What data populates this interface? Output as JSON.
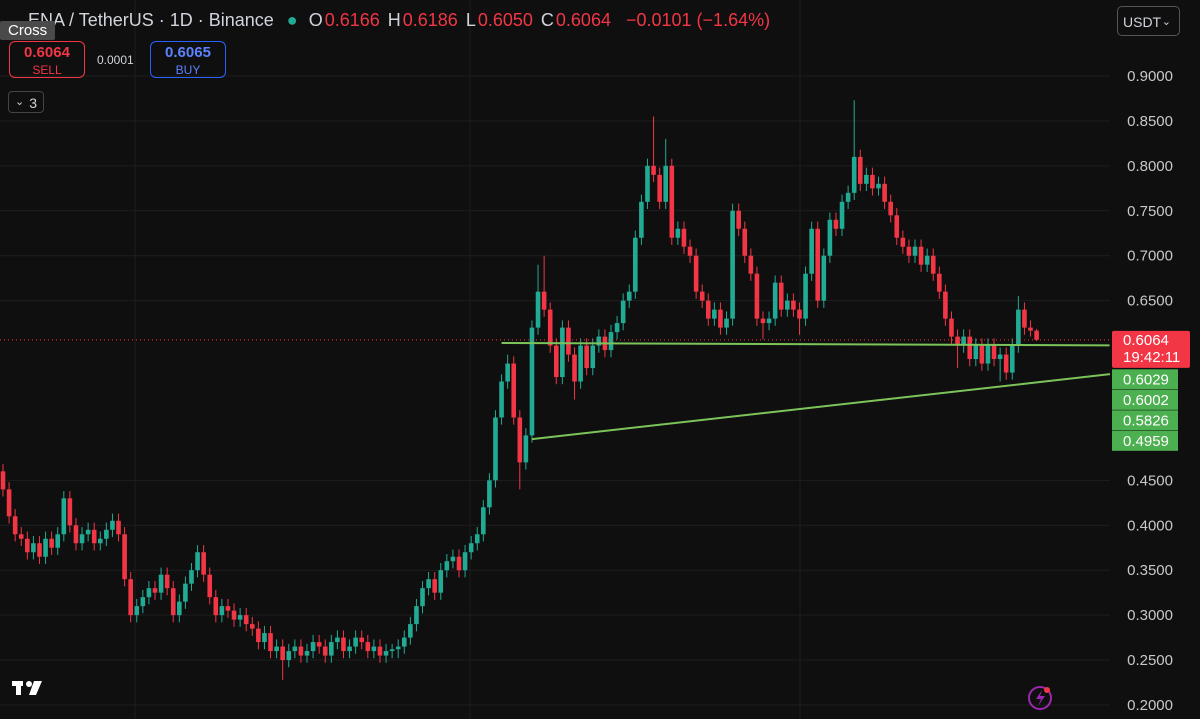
{
  "chart_data": {
    "type": "candlestick",
    "title": "ENA / TetherUS · 1D · Binance",
    "ohlc_header": [
      {
        "key": "O",
        "value": "0.6166"
      },
      {
        "key": "H",
        "value": "0.6186"
      },
      {
        "key": "L",
        "value": "0.6050"
      },
      {
        "key": "C",
        "value": "0.6064"
      }
    ],
    "change": "−0.0101 (−1.64%)",
    "up_color": "#22ab94",
    "down_color": "#f23645",
    "line_color": "#7cc45a",
    "ylim": [
      0.1844,
      0.9846
    ],
    "yticks": [
      {
        "value": 0.2,
        "label": "0.2000"
      },
      {
        "value": 0.25,
        "label": "0.2500"
      },
      {
        "value": 0.3,
        "label": "0.3000"
      },
      {
        "value": 0.35,
        "label": "0.3500"
      },
      {
        "value": 0.4,
        "label": "0.4000"
      },
      {
        "value": 0.45,
        "label": "0.4500"
      },
      {
        "value": 0.65,
        "label": "0.6500"
      },
      {
        "value": 0.7,
        "label": "0.7000"
      },
      {
        "value": 0.75,
        "label": "0.7500"
      },
      {
        "value": 0.8,
        "label": "0.8000"
      },
      {
        "value": 0.85,
        "label": "0.8500"
      },
      {
        "value": 0.9,
        "label": "0.9000"
      }
    ],
    "last_price": {
      "value": 0.6064,
      "label": "0.6064",
      "countdown": "19:42:11"
    },
    "line_labels": [
      {
        "value": 0.6029,
        "label": "0.6029"
      },
      {
        "value": 0.6002,
        "label": "0.6002"
      },
      {
        "value": 0.5826,
        "label": "0.5826"
      },
      {
        "value": 0.4959,
        "label": "0.4959"
      }
    ],
    "trend_lines": [
      {
        "x": [
          82,
          182
        ],
        "y": [
          0.6029,
          0.6002
        ]
      },
      {
        "x": [
          87,
          201
        ],
        "y": [
          0.4959,
          0.5826
        ]
      }
    ],
    "candles": [
      [
        0.46,
        0.468,
        0.432,
        0.44
      ],
      [
        0.44,
        0.448,
        0.402,
        0.41
      ],
      [
        0.41,
        0.418,
        0.382,
        0.39
      ],
      [
        0.39,
        0.398,
        0.377,
        0.385
      ],
      [
        0.385,
        0.393,
        0.362,
        0.37
      ],
      [
        0.37,
        0.388,
        0.362,
        0.38
      ],
      [
        0.38,
        0.388,
        0.357,
        0.365
      ],
      [
        0.365,
        0.393,
        0.357,
        0.385
      ],
      [
        0.385,
        0.393,
        0.367,
        0.375
      ],
      [
        0.375,
        0.398,
        0.367,
        0.39
      ],
      [
        0.39,
        0.438,
        0.382,
        0.43
      ],
      [
        0.43,
        0.438,
        0.392,
        0.4
      ],
      [
        0.4,
        0.408,
        0.372,
        0.38
      ],
      [
        0.38,
        0.398,
        0.372,
        0.39
      ],
      [
        0.39,
        0.403,
        0.382,
        0.395
      ],
      [
        0.395,
        0.403,
        0.372,
        0.38
      ],
      [
        0.38,
        0.393,
        0.372,
        0.385
      ],
      [
        0.385,
        0.403,
        0.377,
        0.395
      ],
      [
        0.395,
        0.413,
        0.387,
        0.405
      ],
      [
        0.405,
        0.413,
        0.382,
        0.39
      ],
      [
        0.39,
        0.398,
        0.332,
        0.34
      ],
      [
        0.34,
        0.348,
        0.292,
        0.3
      ],
      [
        0.3,
        0.318,
        0.292,
        0.31
      ],
      [
        0.31,
        0.328,
        0.302,
        0.32
      ],
      [
        0.32,
        0.338,
        0.312,
        0.33
      ],
      [
        0.33,
        0.338,
        0.317,
        0.325
      ],
      [
        0.325,
        0.353,
        0.317,
        0.345
      ],
      [
        0.345,
        0.353,
        0.322,
        0.33
      ],
      [
        0.33,
        0.338,
        0.292,
        0.3
      ],
      [
        0.3,
        0.323,
        0.292,
        0.315
      ],
      [
        0.315,
        0.343,
        0.307,
        0.335
      ],
      [
        0.335,
        0.358,
        0.327,
        0.35
      ],
      [
        0.35,
        0.378,
        0.342,
        0.37
      ],
      [
        0.37,
        0.378,
        0.337,
        0.345
      ],
      [
        0.345,
        0.353,
        0.312,
        0.32
      ],
      [
        0.32,
        0.328,
        0.292,
        0.3
      ],
      [
        0.3,
        0.318,
        0.292,
        0.31
      ],
      [
        0.31,
        0.318,
        0.297,
        0.305
      ],
      [
        0.305,
        0.313,
        0.287,
        0.295
      ],
      [
        0.295,
        0.308,
        0.287,
        0.3
      ],
      [
        0.3,
        0.308,
        0.282,
        0.29
      ],
      [
        0.29,
        0.298,
        0.277,
        0.285
      ],
      [
        0.285,
        0.293,
        0.262,
        0.27
      ],
      [
        0.27,
        0.288,
        0.262,
        0.28
      ],
      [
        0.28,
        0.288,
        0.252,
        0.26
      ],
      [
        0.26,
        0.273,
        0.252,
        0.265
      ],
      [
        0.265,
        0.273,
        0.228,
        0.25
      ],
      [
        0.25,
        0.268,
        0.242,
        0.26
      ],
      [
        0.26,
        0.273,
        0.252,
        0.265
      ],
      [
        0.265,
        0.273,
        0.247,
        0.255
      ],
      [
        0.255,
        0.268,
        0.247,
        0.26
      ],
      [
        0.26,
        0.278,
        0.252,
        0.27
      ],
      [
        0.27,
        0.278,
        0.257,
        0.265
      ],
      [
        0.265,
        0.273,
        0.247,
        0.255
      ],
      [
        0.255,
        0.278,
        0.247,
        0.27
      ],
      [
        0.27,
        0.283,
        0.262,
        0.275
      ],
      [
        0.275,
        0.283,
        0.252,
        0.26
      ],
      [
        0.26,
        0.273,
        0.252,
        0.265
      ],
      [
        0.265,
        0.283,
        0.257,
        0.275
      ],
      [
        0.275,
        0.283,
        0.262,
        0.27
      ],
      [
        0.27,
        0.278,
        0.252,
        0.26
      ],
      [
        0.26,
        0.273,
        0.252,
        0.265
      ],
      [
        0.265,
        0.273,
        0.247,
        0.255
      ],
      [
        0.255,
        0.268,
        0.247,
        0.26
      ],
      [
        0.26,
        0.268,
        0.252,
        0.262
      ],
      [
        0.262,
        0.273,
        0.252,
        0.265
      ],
      [
        0.265,
        0.283,
        0.257,
        0.275
      ],
      [
        0.275,
        0.298,
        0.267,
        0.29
      ],
      [
        0.29,
        0.318,
        0.282,
        0.31
      ],
      [
        0.31,
        0.338,
        0.302,
        0.33
      ],
      [
        0.33,
        0.348,
        0.322,
        0.34
      ],
      [
        0.34,
        0.348,
        0.317,
        0.325
      ],
      [
        0.325,
        0.358,
        0.317,
        0.35
      ],
      [
        0.35,
        0.368,
        0.342,
        0.36
      ],
      [
        0.36,
        0.373,
        0.352,
        0.365
      ],
      [
        0.365,
        0.373,
        0.342,
        0.35
      ],
      [
        0.35,
        0.378,
        0.342,
        0.37
      ],
      [
        0.37,
        0.388,
        0.362,
        0.38
      ],
      [
        0.38,
        0.398,
        0.372,
        0.39
      ],
      [
        0.39,
        0.428,
        0.382,
        0.42
      ],
      [
        0.42,
        0.458,
        0.412,
        0.45
      ],
      [
        0.45,
        0.528,
        0.442,
        0.52
      ],
      [
        0.52,
        0.568,
        0.512,
        0.56
      ],
      [
        0.56,
        0.59,
        0.552,
        0.58
      ],
      [
        0.58,
        0.588,
        0.512,
        0.52
      ],
      [
        0.52,
        0.528,
        0.44,
        0.47
      ],
      [
        0.47,
        0.508,
        0.462,
        0.5
      ],
      [
        0.5,
        0.628,
        0.492,
        0.62
      ],
      [
        0.62,
        0.69,
        0.612,
        0.66
      ],
      [
        0.66,
        0.7,
        0.632,
        0.64
      ],
      [
        0.64,
        0.648,
        0.592,
        0.6
      ],
      [
        0.6,
        0.608,
        0.557,
        0.565
      ],
      [
        0.565,
        0.628,
        0.557,
        0.62
      ],
      [
        0.62,
        0.628,
        0.582,
        0.59
      ],
      [
        0.59,
        0.598,
        0.54,
        0.56
      ],
      [
        0.56,
        0.608,
        0.552,
        0.6
      ],
      [
        0.6,
        0.608,
        0.567,
        0.575
      ],
      [
        0.575,
        0.608,
        0.567,
        0.6
      ],
      [
        0.6,
        0.618,
        0.592,
        0.61
      ],
      [
        0.61,
        0.618,
        0.587,
        0.595
      ],
      [
        0.595,
        0.623,
        0.587,
        0.615
      ],
      [
        0.615,
        0.633,
        0.607,
        0.625
      ],
      [
        0.625,
        0.658,
        0.617,
        0.65
      ],
      [
        0.65,
        0.668,
        0.642,
        0.66
      ],
      [
        0.66,
        0.728,
        0.652,
        0.72
      ],
      [
        0.72,
        0.768,
        0.712,
        0.76
      ],
      [
        0.76,
        0.808,
        0.752,
        0.8
      ],
      [
        0.8,
        0.855,
        0.782,
        0.79
      ],
      [
        0.79,
        0.798,
        0.752,
        0.76
      ],
      [
        0.76,
        0.83,
        0.752,
        0.8
      ],
      [
        0.8,
        0.808,
        0.712,
        0.72
      ],
      [
        0.72,
        0.738,
        0.712,
        0.73
      ],
      [
        0.73,
        0.738,
        0.702,
        0.71
      ],
      [
        0.71,
        0.718,
        0.692,
        0.7
      ],
      [
        0.7,
        0.708,
        0.652,
        0.66
      ],
      [
        0.66,
        0.668,
        0.642,
        0.65
      ],
      [
        0.65,
        0.658,
        0.622,
        0.63
      ],
      [
        0.63,
        0.648,
        0.622,
        0.64
      ],
      [
        0.64,
        0.648,
        0.612,
        0.62
      ],
      [
        0.62,
        0.638,
        0.612,
        0.63
      ],
      [
        0.63,
        0.758,
        0.622,
        0.75
      ],
      [
        0.75,
        0.758,
        0.722,
        0.73
      ],
      [
        0.73,
        0.738,
        0.692,
        0.7
      ],
      [
        0.7,
        0.708,
        0.672,
        0.68
      ],
      [
        0.68,
        0.688,
        0.622,
        0.63
      ],
      [
        0.63,
        0.638,
        0.607,
        0.625
      ],
      [
        0.625,
        0.638,
        0.617,
        0.63
      ],
      [
        0.63,
        0.678,
        0.622,
        0.67
      ],
      [
        0.67,
        0.678,
        0.632,
        0.64
      ],
      [
        0.64,
        0.658,
        0.632,
        0.65
      ],
      [
        0.65,
        0.658,
        0.632,
        0.64
      ],
      [
        0.64,
        0.648,
        0.612,
        0.63
      ],
      [
        0.63,
        0.688,
        0.622,
        0.68
      ],
      [
        0.68,
        0.738,
        0.672,
        0.73
      ],
      [
        0.73,
        0.738,
        0.642,
        0.65
      ],
      [
        0.65,
        0.708,
        0.642,
        0.7
      ],
      [
        0.7,
        0.748,
        0.692,
        0.74
      ],
      [
        0.74,
        0.748,
        0.722,
        0.73
      ],
      [
        0.73,
        0.768,
        0.722,
        0.76
      ],
      [
        0.76,
        0.778,
        0.752,
        0.77
      ],
      [
        0.77,
        0.873,
        0.762,
        0.81
      ],
      [
        0.81,
        0.818,
        0.772,
        0.78
      ],
      [
        0.78,
        0.798,
        0.772,
        0.79
      ],
      [
        0.79,
        0.798,
        0.767,
        0.775
      ],
      [
        0.775,
        0.788,
        0.767,
        0.78
      ],
      [
        0.78,
        0.788,
        0.752,
        0.76
      ],
      [
        0.76,
        0.768,
        0.737,
        0.745
      ],
      [
        0.745,
        0.753,
        0.712,
        0.72
      ],
      [
        0.72,
        0.728,
        0.702,
        0.71
      ],
      [
        0.71,
        0.718,
        0.692,
        0.7
      ],
      [
        0.7,
        0.718,
        0.692,
        0.71
      ],
      [
        0.71,
        0.718,
        0.682,
        0.69
      ],
      [
        0.69,
        0.708,
        0.682,
        0.7
      ],
      [
        0.7,
        0.708,
        0.672,
        0.68
      ],
      [
        0.68,
        0.688,
        0.652,
        0.66
      ],
      [
        0.66,
        0.668,
        0.622,
        0.63
      ],
      [
        0.63,
        0.638,
        0.602,
        0.61
      ],
      [
        0.61,
        0.618,
        0.575,
        0.6
      ],
      [
        0.6,
        0.618,
        0.592,
        0.61
      ],
      [
        0.61,
        0.618,
        0.577,
        0.585
      ],
      [
        0.585,
        0.608,
        0.577,
        0.6
      ],
      [
        0.6,
        0.608,
        0.572,
        0.58
      ],
      [
        0.58,
        0.608,
        0.572,
        0.6
      ],
      [
        0.6,
        0.608,
        0.577,
        0.585
      ],
      [
        0.585,
        0.598,
        0.56,
        0.59
      ],
      [
        0.59,
        0.598,
        0.562,
        0.57
      ],
      [
        0.57,
        0.608,
        0.562,
        0.6
      ],
      [
        0.6,
        0.655,
        0.592,
        0.64
      ],
      [
        0.64,
        0.648,
        0.612,
        0.62
      ],
      [
        0.62,
        0.628,
        0.61,
        0.6166
      ],
      [
        0.6166,
        0.6186,
        0.605,
        0.6064
      ]
    ],
    "ui": {
      "cross": "Cross",
      "sell_price": "0.6064",
      "sell": "SELL",
      "spread": "0.0001",
      "buy_price": "0.6065",
      "buy": "BUY",
      "indicator_count": "3",
      "currency": "USDT"
    }
  }
}
